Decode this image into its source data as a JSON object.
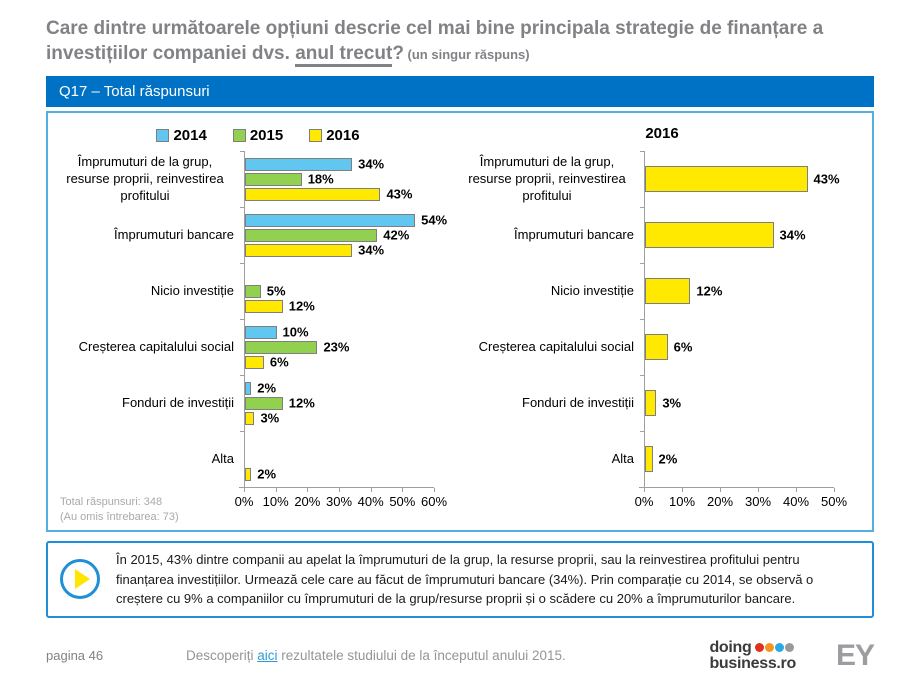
{
  "header": {
    "title_prefix": "Care dintre următoarele opțiuni descrie cel mai bine principala strategie de finanțare a investițiilor companiei dvs. ",
    "title_underline": "anul trecut",
    "title_question": "?",
    "title_suffix": " (un singur răspuns)"
  },
  "banner": {
    "label": "Q17 – Total răspunsuri"
  },
  "chart_data": [
    {
      "type": "bar",
      "orientation": "horizontal",
      "title": "",
      "legend_position": "top",
      "categories": [
        "Împrumuturi de la grup, resurse proprii, reinvestirea profitului",
        "Împrumuturi bancare",
        "Nicio investiție",
        "Creșterea capitalului social",
        "Fonduri de investiții",
        "Alta"
      ],
      "series": [
        {
          "name": "2014",
          "color": "#62C7F0",
          "values": [
            34,
            54,
            null,
            10,
            2,
            null
          ]
        },
        {
          "name": "2015",
          "color": "#92D050",
          "values": [
            18,
            42,
            5,
            23,
            12,
            null
          ]
        },
        {
          "name": "2016",
          "color": "#FFE900",
          "values": [
            43,
            34,
            12,
            6,
            3,
            2
          ]
        }
      ],
      "value_suffix": "%",
      "xlim": [
        0,
        60
      ],
      "tick_labels": [
        "0%",
        "10%",
        "20%",
        "30%",
        "40%",
        "50%",
        "60%"
      ],
      "grid": false,
      "note_lines": [
        "Total răspunsuri: 348",
        "(Au omis întrebarea: 73)"
      ]
    },
    {
      "type": "bar",
      "orientation": "horizontal",
      "title": "2016",
      "categories": [
        "Împrumuturi de la grup, resurse proprii, reinvestirea profitului",
        "Împrumuturi bancare",
        "Nicio investiție",
        "Creșterea capitalului social",
        "Fonduri de investiții",
        "Alta"
      ],
      "series": [
        {
          "name": "2016",
          "color": "#FFE900",
          "values": [
            43,
            34,
            12,
            6,
            3,
            2
          ]
        }
      ],
      "value_suffix": "%",
      "xlim": [
        0,
        50
      ],
      "tick_labels": [
        "0%",
        "10%",
        "20%",
        "30%",
        "40%",
        "50%"
      ],
      "grid": false
    }
  ],
  "callout": {
    "text": "În 2015, 43% dintre companii au apelat la împrumuturi de la grup, la resurse proprii, sau la reinvestirea profitului pentru finanțarea investițiilor. Urmează cele care au făcut de împrumuturi bancare (34%). Prin comparație cu 2014, se observă o creștere cu 9% a companiilor cu împrumuturi de la grup/resurse proprii și o scădere cu 20% a împrumuturilor bancare."
  },
  "footer": {
    "page": "pagina 46",
    "link_prefix": "Descoperiți ",
    "link_text": "aici",
    "link_suffix": " rezultatele studiului de la începutul anului 2015.",
    "logo_doing": {
      "line1": "doing",
      "line2": "business.ro",
      "dot_colors": [
        "#E0301E",
        "#F7941E",
        "#29ABE2",
        "#97999B"
      ]
    },
    "logo_ey": "EY"
  },
  "colors": {
    "banner_bg": "#0072C6",
    "panel_border": "#55AEE2",
    "callout_border": "#1F8FD6",
    "title_gray": "#808285",
    "axis_gray": "#9F9F9F"
  }
}
